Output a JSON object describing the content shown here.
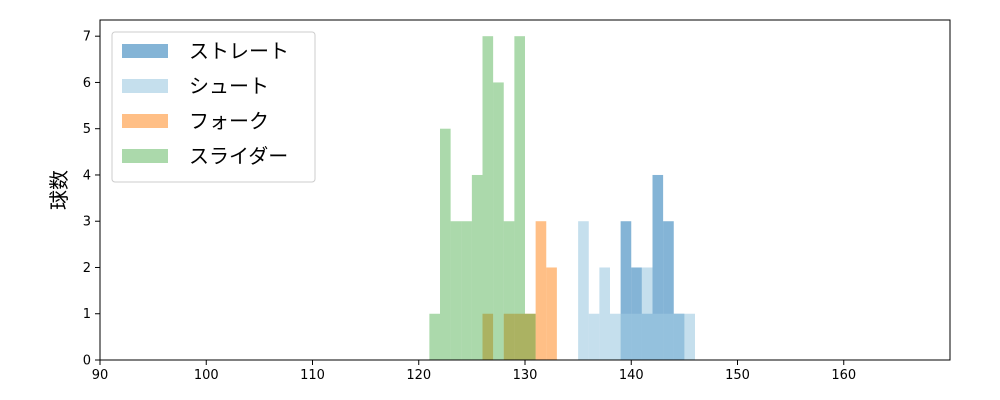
{
  "chart_data": {
    "type": "bar",
    "histogram": true,
    "xlim": [
      90,
      170
    ],
    "ylim": [
      0,
      7.35
    ],
    "x_ticks": [
      90,
      100,
      110,
      120,
      130,
      140,
      150,
      160
    ],
    "y_ticks": [
      0,
      1,
      2,
      3,
      4,
      5,
      6,
      7
    ],
    "xlabel": "",
    "ylabel": "球数",
    "title": "",
    "grid": false,
    "legend_position": "top-left",
    "series": [
      {
        "name": "ストレート",
        "color": "#1f77b4",
        "alpha": 0.55,
        "bins": [
          {
            "x0": 139.0,
            "x1": 140.0,
            "count": 3
          },
          {
            "x0": 140.0,
            "x1": 141.0,
            "count": 2
          },
          {
            "x0": 141.0,
            "x1": 142.0,
            "count": 1
          },
          {
            "x0": 142.0,
            "x1": 143.0,
            "count": 4
          },
          {
            "x0": 143.0,
            "x1": 144.0,
            "count": 3
          },
          {
            "x0": 144.0,
            "x1": 145.0,
            "count": 1
          }
        ]
      },
      {
        "name": "シュート",
        "color": "#9ecae1",
        "alpha": 0.6,
        "bins": [
          {
            "x0": 135.0,
            "x1": 136.0,
            "count": 3
          },
          {
            "x0": 136.0,
            "x1": 137.0,
            "count": 1
          },
          {
            "x0": 137.0,
            "x1": 138.0,
            "count": 2
          },
          {
            "x0": 138.0,
            "x1": 139.0,
            "count": 1
          },
          {
            "x0": 139.0,
            "x1": 140.0,
            "count": 1
          },
          {
            "x0": 140.0,
            "x1": 141.0,
            "count": 1
          },
          {
            "x0": 141.0,
            "x1": 142.0,
            "count": 2
          },
          {
            "x0": 142.0,
            "x1": 143.0,
            "count": 1
          },
          {
            "x0": 143.0,
            "x1": 144.0,
            "count": 1
          },
          {
            "x0": 144.0,
            "x1": 145.0,
            "count": 1
          },
          {
            "x0": 145.0,
            "x1": 146.0,
            "count": 1
          }
        ]
      },
      {
        "name": "フォーク",
        "color": "#ff7f0e",
        "alpha": 0.5,
        "bins": [
          {
            "x0": 126.0,
            "x1": 127.0,
            "count": 1
          },
          {
            "x0": 128.0,
            "x1": 129.0,
            "count": 1
          },
          {
            "x0": 129.0,
            "x1": 130.0,
            "count": 1
          },
          {
            "x0": 130.0,
            "x1": 131.0,
            "count": 1
          },
          {
            "x0": 131.0,
            "x1": 132.0,
            "count": 3
          },
          {
            "x0": 132.0,
            "x1": 133.0,
            "count": 2
          }
        ]
      },
      {
        "name": "スライダー",
        "color": "#2ca02c",
        "alpha": 0.4,
        "bins": [
          {
            "x0": 121.0,
            "x1": 122.0,
            "count": 1
          },
          {
            "x0": 122.0,
            "x1": 123.0,
            "count": 5
          },
          {
            "x0": 123.0,
            "x1": 124.0,
            "count": 3
          },
          {
            "x0": 124.0,
            "x1": 125.0,
            "count": 3
          },
          {
            "x0": 125.0,
            "x1": 126.0,
            "count": 4
          },
          {
            "x0": 126.0,
            "x1": 127.0,
            "count": 7
          },
          {
            "x0": 127.0,
            "x1": 128.0,
            "count": 6
          },
          {
            "x0": 128.0,
            "x1": 129.0,
            "count": 3
          },
          {
            "x0": 129.0,
            "x1": 130.0,
            "count": 7
          },
          {
            "x0": 130.0,
            "x1": 131.0,
            "count": 1
          }
        ]
      }
    ]
  }
}
